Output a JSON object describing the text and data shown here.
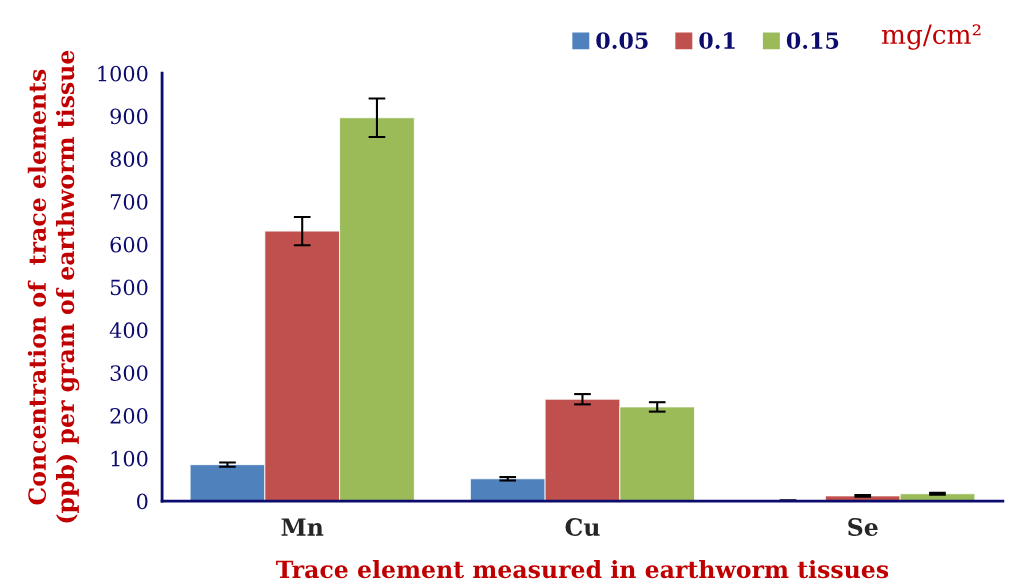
{
  "chart_data": {
    "type": "bar",
    "xlabel": "Trace element measured in earthworm tissues",
    "ylabel": "Concentration of  trace elements\n(ppb) per gram of earthworm tissue",
    "legend_title": "mg/cm²",
    "categories": [
      "Mn",
      "Cu",
      "Se"
    ],
    "series": [
      {
        "name": "0.05",
        "color": "#4f81bd",
        "values": [
          85,
          52,
          1
        ],
        "errors": [
          5,
          4,
          1
        ]
      },
      {
        "name": "0.1",
        "color": "#c0504d",
        "values": [
          631,
          238,
          12
        ],
        "errors": [
          33,
          12,
          2
        ]
      },
      {
        "name": "0.15",
        "color": "#9bbb59",
        "values": [
          896,
          220,
          17
        ],
        "errors": [
          45,
          11,
          2
        ]
      }
    ],
    "ylim": [
      0,
      1000
    ],
    "yticks": [
      0,
      100,
      200,
      300,
      400,
      500,
      600,
      700,
      800,
      900,
      1000
    ],
    "grid": false,
    "legend": "top right"
  }
}
